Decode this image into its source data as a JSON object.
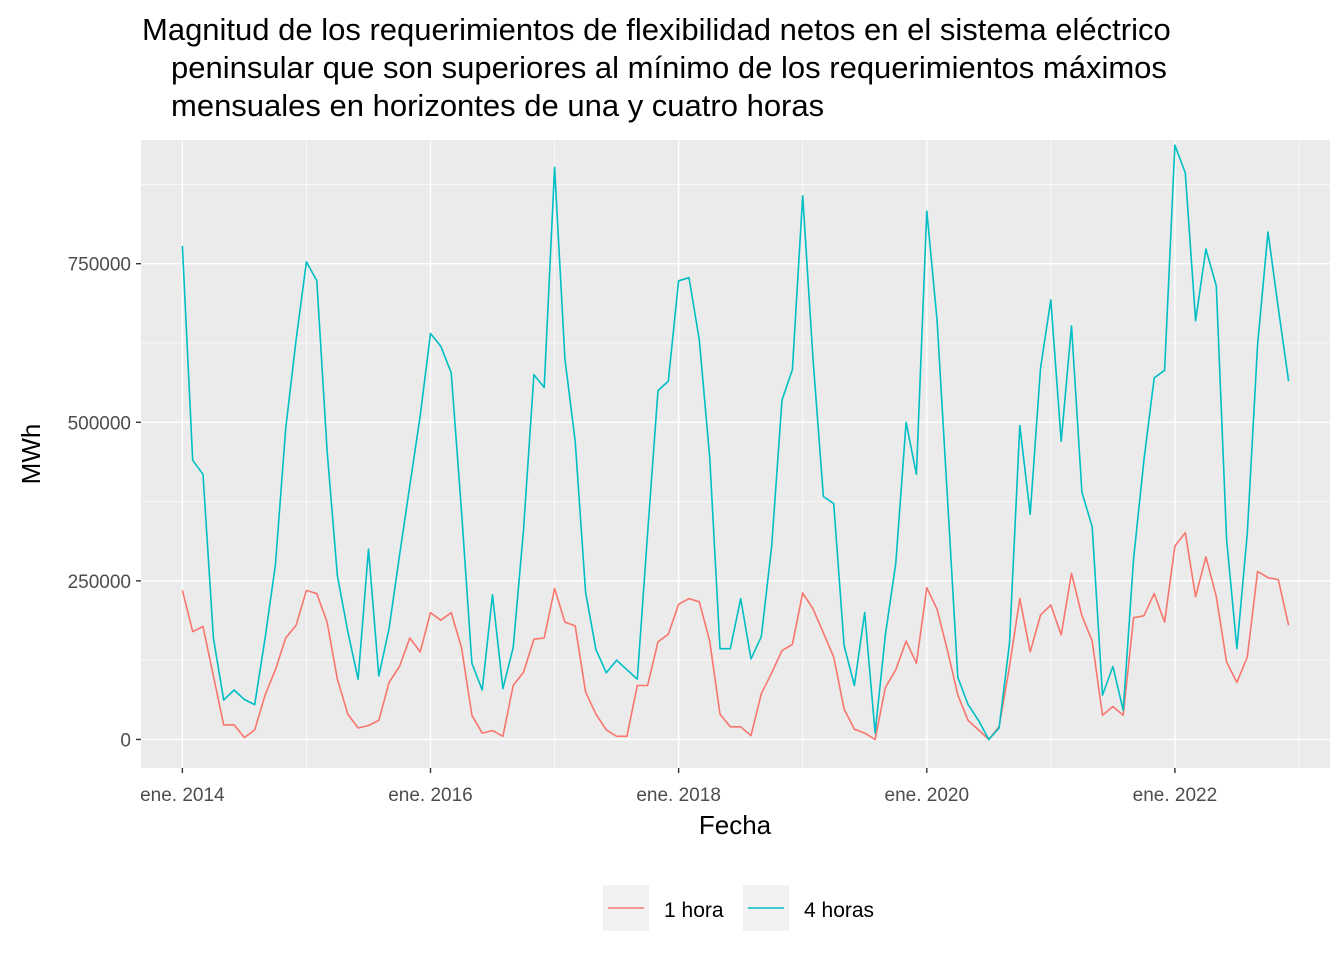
{
  "chart_data": {
    "type": "line",
    "title_lines": [
      "Magnitud de los requerimientos de flexibilidad netos en el sistema eléctrico",
      "peninsular que son superiores al mínimo de los requerimientos máximos",
      "mensuales en horizontes de una y cuatro horas"
    ],
    "xlabel": "Fecha",
    "ylabel": "MWh",
    "x_start": "2014-01",
    "x_step": "1 month",
    "xlim": [
      "2013-09",
      "2023-04"
    ],
    "ylim": [
      -45000,
      945000
    ],
    "y_ticks": [
      0,
      250000,
      500000,
      750000
    ],
    "y_tick_labels": [
      "0",
      "250000",
      "500000",
      "750000"
    ],
    "x_ticks": [
      "2014-01",
      "2016-01",
      "2018-01",
      "2020-01",
      "2022-01"
    ],
    "x_tick_labels": [
      "ene. 2014",
      "ene. 2016",
      "ene. 2018",
      "ene. 2020",
      "ene. 2022"
    ],
    "grid": true,
    "legend_position": "bottom",
    "series": [
      {
        "name": "1 hora",
        "color": "#F8766D",
        "values": [
          235000,
          170000,
          178000,
          100000,
          23000,
          23000,
          3000,
          15000,
          70000,
          110000,
          160000,
          180000,
          235000,
          230000,
          185000,
          95000,
          40000,
          18000,
          22000,
          30000,
          90000,
          115000,
          160000,
          138000,
          200000,
          188000,
          200000,
          145000,
          38000,
          10000,
          14000,
          5000,
          85000,
          106000,
          158000,
          160000,
          238000,
          185000,
          179000,
          75000,
          40000,
          15000,
          5000,
          5000,
          85000,
          85000,
          154000,
          166000,
          213000,
          222000,
          217000,
          155000,
          40000,
          20000,
          20000,
          6000,
          72000,
          105000,
          140000,
          150000,
          231000,
          206000,
          168000,
          130000,
          48000,
          16000,
          10000,
          0,
          82000,
          110000,
          155000,
          120000,
          239000,
          205000,
          140000,
          70000,
          30000,
          15000,
          0,
          20000,
          115000,
          222000,
          138000,
          196000,
          212000,
          165000,
          262000,
          195000,
          155000,
          38000,
          52000,
          38000,
          192000,
          195000,
          230000,
          185000,
          305000,
          326000,
          225000,
          288000,
          225000,
          122000,
          90000,
          130000,
          265000,
          255000,
          252000,
          180000
        ]
      },
      {
        "name": "4 horas",
        "color": "#00BFC4",
        "values": [
          778000,
          440000,
          418000,
          160000,
          62000,
          78000,
          63000,
          55000,
          160000,
          275000,
          490000,
          630000,
          753000,
          723000,
          455000,
          258000,
          170000,
          95000,
          300000,
          100000,
          175000,
          290000,
          400000,
          510000,
          640000,
          620000,
          578000,
          360000,
          120000,
          78000,
          228000,
          80000,
          145000,
          330000,
          575000,
          555000,
          902000,
          600000,
          470000,
          232000,
          142000,
          105000,
          125000,
          110000,
          95000,
          325000,
          550000,
          565000,
          723000,
          728000,
          630000,
          445000,
          143000,
          143000,
          222000,
          127000,
          162000,
          305000,
          535000,
          583000,
          857000,
          600000,
          383000,
          372000,
          148000,
          85000,
          200000,
          10000,
          165000,
          278000,
          500000,
          418000,
          833000,
          660000,
          380000,
          98000,
          55000,
          30000,
          0,
          18000,
          152000,
          495000,
          355000,
          585000,
          693000,
          470000,
          652000,
          390000,
          335000,
          70000,
          115000,
          46000,
          285000,
          440000,
          570000,
          582000,
          937000,
          893000,
          660000,
          773000,
          715000,
          315000,
          143000,
          325000,
          623000,
          800000,
          680000,
          565000
        ]
      }
    ]
  }
}
